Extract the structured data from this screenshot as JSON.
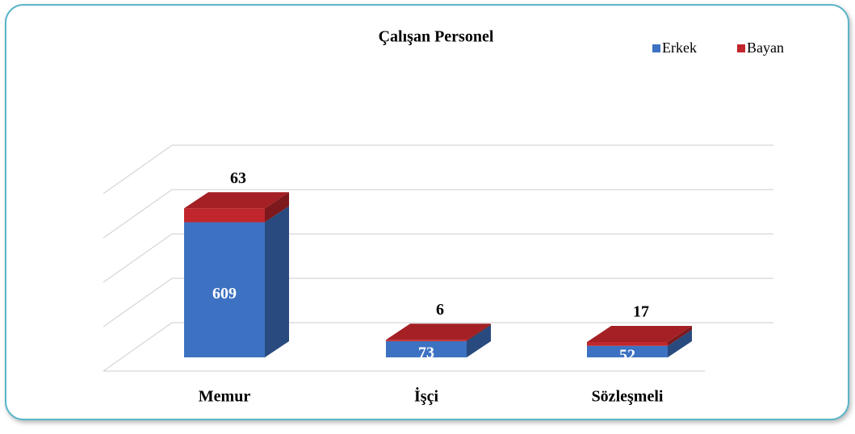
{
  "chart_data": {
    "type": "bar3d_stacked",
    "title": "Çalışan Personel",
    "categories": [
      "Memur",
      "İşçi",
      "Sözleşmeli"
    ],
    "series": [
      {
        "name": "Erkek",
        "color": "#3d72c2",
        "values": [
          609,
          73,
          52
        ]
      },
      {
        "name": "Bayan",
        "color": "#c1262c",
        "values": [
          63,
          6,
          17
        ]
      }
    ],
    "ylim": [
      0,
      800
    ],
    "yticks": [
      0,
      200,
      400,
      600,
      800
    ],
    "grid": true,
    "legend": "top-right"
  }
}
